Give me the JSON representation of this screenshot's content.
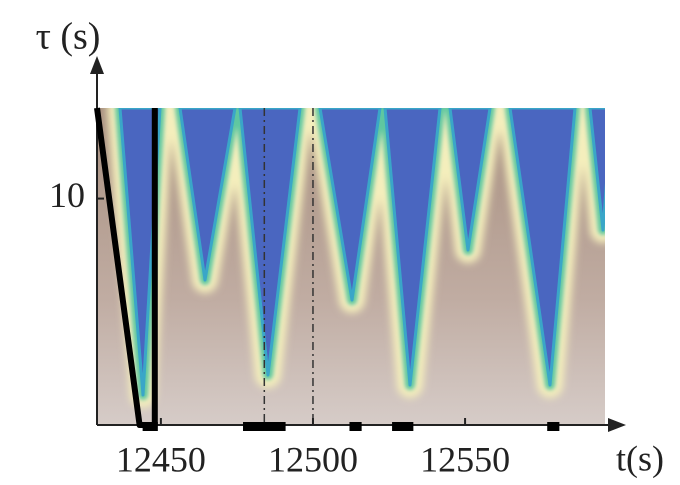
{
  "chart_data": {
    "type": "heatmap",
    "y_label": "τ (s)",
    "x_label": "t(s)",
    "xlim": [
      12429,
      12596
    ],
    "xticks": [
      12450,
      12500,
      12550
    ],
    "ylim": [
      0,
      14
    ],
    "yticks": [
      10
    ],
    "dashed_lines_x": [
      12484,
      12500
    ],
    "intervals": [
      [
        12444,
        12449
      ],
      [
        12477,
        12491
      ],
      [
        12512,
        12516
      ],
      [
        12526,
        12533
      ],
      [
        12577,
        12581
      ]
    ],
    "cone": {
      "x": [
        12429,
        12443,
        12448,
        12448
      ],
      "y": [
        14,
        0,
        0,
        14
      ]
    },
    "color": "#000000"
  }
}
